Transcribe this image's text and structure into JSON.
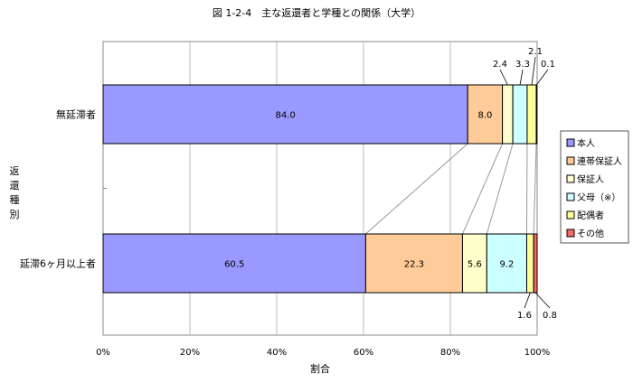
{
  "chart_data": {
    "type": "bar",
    "orientation": "horizontal",
    "stacked": "percent",
    "title": "図 1-2-4　主な返還者と学種との関係（大学）",
    "xlabel": "割合",
    "ylabel": "返還種別",
    "xlim": [
      0,
      100
    ],
    "x_ticks": [
      "0%",
      "20%",
      "40%",
      "60%",
      "80%",
      "100%"
    ],
    "grid": true,
    "legend_position": "right",
    "categories": [
      "無延滞者",
      "延滞6ヶ月以上者"
    ],
    "series": [
      {
        "name": "本人",
        "color": "#9999ff",
        "values": [
          84.0,
          60.5
        ]
      },
      {
        "name": "連帯保証人",
        "color": "#ffcc99",
        "values": [
          8.0,
          22.3
        ]
      },
      {
        "name": "保証人",
        "color": "#ffffcc",
        "values": [
          2.4,
          5.6
        ]
      },
      {
        "name": "父母（※）",
        "color": "#ccffff",
        "values": [
          3.3,
          9.2
        ]
      },
      {
        "name": "配偶者",
        "color": "#ffff99",
        "values": [
          2.1,
          1.6
        ]
      },
      {
        "name": "その他",
        "color": "#ff6666",
        "values": [
          0.1,
          0.8
        ]
      }
    ]
  }
}
